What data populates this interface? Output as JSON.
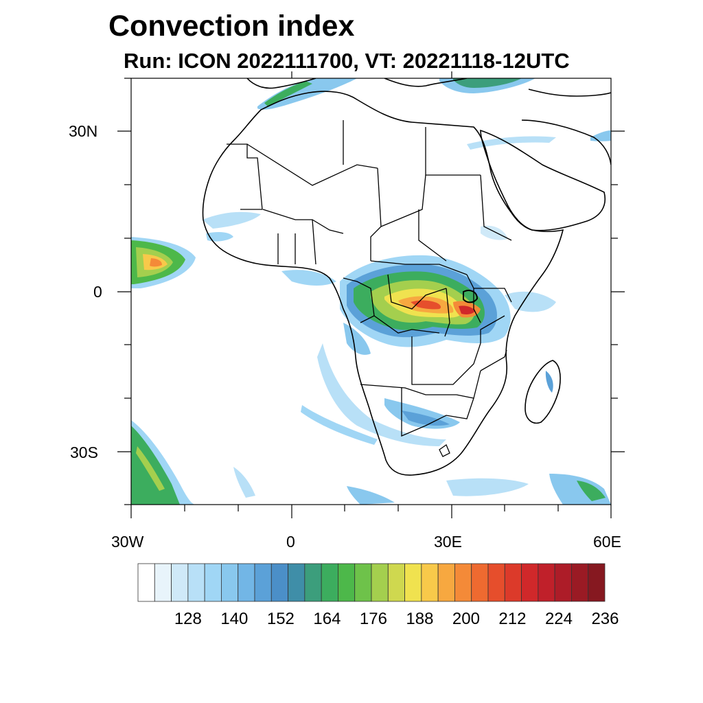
{
  "title": "Convection index",
  "subtitle": "Run: ICON 2022111700,  VT: 20221118-12UTC",
  "axes": {
    "lat_labels": [
      "30N",
      "0",
      "30S"
    ],
    "lon_labels": [
      "30W",
      "0",
      "30E",
      "60E"
    ]
  },
  "colorbar": {
    "labels": [
      "128",
      "140",
      "152",
      "164",
      "176",
      "188",
      "200",
      "212",
      "224",
      "236"
    ],
    "colors": [
      "#ffffff",
      "#e8f4fb",
      "#cfe9f8",
      "#b8e0f7",
      "#a0d6f5",
      "#89c8ee",
      "#72b6e6",
      "#5ba1d8",
      "#4b8fc8",
      "#3f8ea8",
      "#3c9e7c",
      "#3cad5e",
      "#4db84a",
      "#6ec24a",
      "#a4cf4e",
      "#cfd84f",
      "#f0e24f",
      "#f8c94a",
      "#f7a840",
      "#f48a38",
      "#ee6a30",
      "#e64e2c",
      "#dc3a2a",
      "#d0282a",
      "#c0202a",
      "#ad1c28",
      "#9a1a24",
      "#861820"
    ]
  },
  "icons": {
    "map": "convection-map"
  }
}
